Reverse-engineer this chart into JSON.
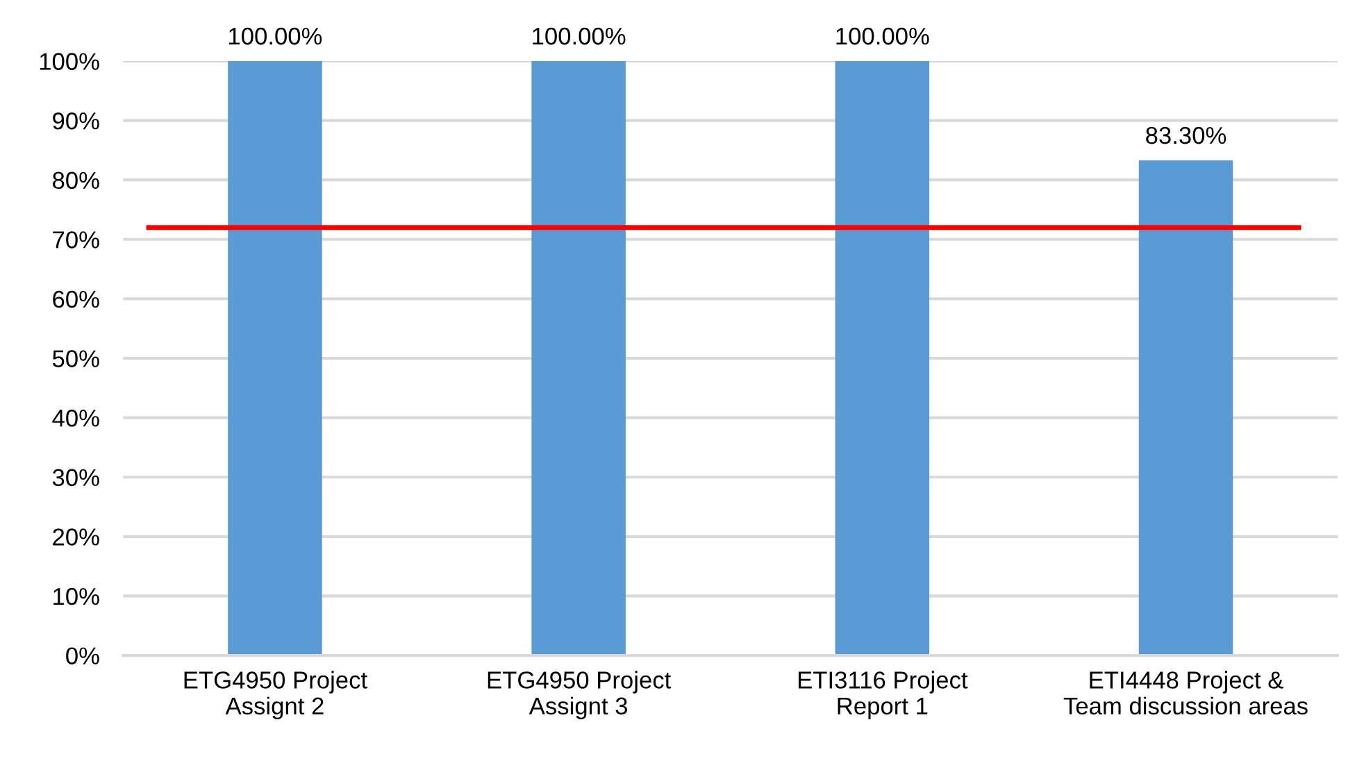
{
  "chart_data": {
    "type": "bar",
    "categories": [
      "ETG4950 Project\nAssignt 2",
      "ETG4950 Project\nAssignt 3",
      "ETI3116 Project\nReport 1",
      "ETI4448 Project &\nTeam discussion areas"
    ],
    "values": [
      100,
      100,
      100,
      83.3
    ],
    "color": "#5b9bd5",
    "value_labels": [
      "100.00%",
      "100.00%",
      "100.00%",
      "83.30%"
    ],
    "ylim": [
      0,
      100
    ],
    "yticks": [
      {
        "value": 0,
        "label": "0%"
      },
      {
        "value": 10,
        "label": "10%"
      },
      {
        "value": 20,
        "label": "20%"
      },
      {
        "value": 30,
        "label": "30%"
      },
      {
        "value": 40,
        "label": "40%"
      },
      {
        "value": 50,
        "label": "50%"
      },
      {
        "value": 60,
        "label": "60%"
      },
      {
        "value": 70,
        "label": "70%"
      },
      {
        "value": 80,
        "label": "80%"
      },
      {
        "value": 90,
        "label": "90%"
      },
      {
        "value": 100,
        "label": "100%"
      }
    ],
    "ref_lines": [
      {
        "axis": "y",
        "value": 72,
        "color": "#ff0000"
      }
    ],
    "grid": "y",
    "legend": false
  }
}
